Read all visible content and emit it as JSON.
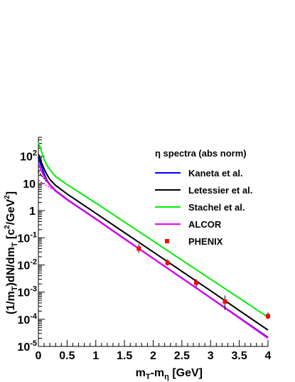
{
  "chart_data": {
    "type": "line",
    "log_y": true,
    "xlim": [
      0,
      4
    ],
    "ylim": [
      1e-05,
      500
    ],
    "x_ticks": [
      "0",
      "0.5",
      "1",
      "1.5",
      "2",
      "2.5",
      "3",
      "3.5",
      "4"
    ],
    "y_ticks": [
      {
        "value": 100,
        "base": "10",
        "exp": "2"
      },
      {
        "value": 10,
        "base": "10",
        "exp": ""
      },
      {
        "value": 1,
        "base": "1",
        "exp": ""
      },
      {
        "value": 0.1,
        "base": "10",
        "exp": "-1"
      },
      {
        "value": 0.01,
        "base": "10",
        "exp": "-2"
      },
      {
        "value": 0.001,
        "base": "10",
        "exp": "-3"
      },
      {
        "value": 0.0001,
        "base": "10",
        "exp": "-4"
      },
      {
        "value": 1e-05,
        "base": "10",
        "exp": "-5"
      }
    ],
    "xlabel": {
      "main": "m",
      "sub1": "T",
      "mid": "-m",
      "sub2": "η",
      "tail": " [GeV]"
    },
    "ylabel": {
      "p1": "(1/m",
      "s1": "T",
      "p2": ")dN/dm",
      "s2": "T",
      "p3": " [c",
      "e1": "2",
      "p4": "/GeV",
      "e2": "2",
      "p5": "]"
    },
    "legend_title": "η spectra (abs norm)",
    "series": [
      {
        "name": "Kaneta et al.",
        "color": "#0000ff",
        "x": [
          0.0,
          0.05,
          0.1,
          0.15,
          0.2,
          0.3,
          0.5,
          1.0,
          1.5,
          2.0,
          2.5,
          3.0,
          3.5,
          4.0
        ],
        "y": [
          90,
          45,
          23,
          13,
          9,
          5.5,
          2.6,
          0.5,
          0.093,
          0.0175,
          0.0033,
          0.00062,
          0.000115,
          2.15e-05
        ]
      },
      {
        "name": "Letessier et al.",
        "color": "#000000",
        "x": [
          0.0,
          0.05,
          0.1,
          0.15,
          0.2,
          0.3,
          0.5,
          1.0,
          1.5,
          2.0,
          2.5,
          3.0,
          3.5,
          4.0
        ],
        "y": [
          120,
          62,
          34,
          21,
          14,
          8.5,
          4.1,
          0.8,
          0.155,
          0.03,
          0.0058,
          0.00112,
          0.00021,
          4e-05
        ]
      },
      {
        "name": "Stachel et al.",
        "color": "#00ee00",
        "x": [
          0.0,
          0.05,
          0.1,
          0.15,
          0.2,
          0.3,
          0.5,
          1.0,
          1.5,
          2.0,
          2.5,
          3.0,
          3.5,
          4.0
        ],
        "y": [
          330,
          160,
          75,
          46,
          32,
          18,
          9,
          1.9,
          0.38,
          0.076,
          0.015,
          0.003,
          0.0006,
          0.00012
        ]
      },
      {
        "name": "ALCOR",
        "color": "#ee00ee",
        "x": [
          0.0,
          0.05,
          0.1,
          0.15,
          0.2,
          0.3,
          0.5,
          1.0,
          1.5,
          2.0,
          2.5,
          3.0,
          3.5,
          4.0
        ],
        "y": [
          55,
          30,
          18,
          12,
          8.5,
          5.2,
          2.5,
          0.48,
          0.09,
          0.017,
          0.0032,
          0.0006,
          0.00011,
          2e-05
        ]
      }
    ],
    "markers": {
      "name": "PHENIX",
      "color": "#ff0000",
      "points": [
        {
          "x": 1.75,
          "y": 0.04,
          "lo": 0.028,
          "hi": 0.058
        },
        {
          "x": 2.25,
          "y": 0.012,
          "lo": 0.0095,
          "hi": 0.016
        },
        {
          "x": 2.75,
          "y": 0.0022,
          "lo": 0.0015,
          "hi": 0.003
        },
        {
          "x": 3.25,
          "y": 0.00045,
          "lo": 0.00022,
          "hi": 0.00075
        },
        {
          "x": 4.0,
          "y": 0.00013,
          "lo": 0.0001,
          "hi": 0.00018
        }
      ]
    },
    "dotted_series": {
      "color": "#ee00ee",
      "x": [
        0.0,
        0.05,
        0.1,
        0.15,
        0.2,
        0.25
      ],
      "y": [
        13,
        11,
        9.5,
        8.2,
        7.0,
        6.0
      ]
    },
    "dotted_series_2": {
      "color": "#000000",
      "x": [
        0.0,
        0.05,
        0.1,
        0.15
      ],
      "y": [
        28,
        20,
        15,
        11
      ]
    },
    "grid": false,
    "legend_position": "top-right"
  }
}
